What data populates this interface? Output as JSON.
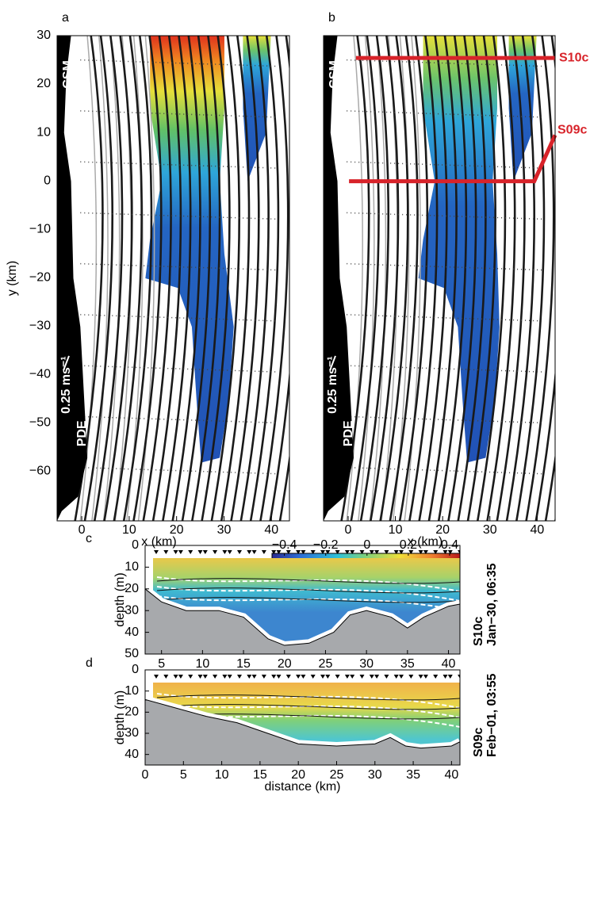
{
  "chart_data": [
    {
      "type": "map",
      "panel": "a",
      "xlabel": "x (km)",
      "ylabel": "y (km)",
      "xlim": [
        -5.2,
        43.8
      ],
      "ylim": [
        -70.3,
        30
      ],
      "xticks": [
        0,
        10,
        20,
        30,
        40
      ],
      "yticks": [
        30,
        20,
        10,
        0,
        {
          "value": -10,
          "label": "−10"
        },
        {
          "value": -20,
          "label": "−20"
        },
        {
          "value": -30,
          "label": "−30"
        },
        {
          "value": -40,
          "label": "−40"
        },
        {
          "value": -50,
          "label": "−50"
        },
        {
          "value": -60,
          "label": "−60"
        }
      ],
      "labels": [
        "CSM",
        "PDE"
      ],
      "scale_label": "0.25 ms⁻¹"
    },
    {
      "type": "map",
      "panel": "b",
      "xlabel": "x (km)",
      "xlim": [
        -5.2,
        43.8
      ],
      "ylim": [
        -70.3,
        30
      ],
      "xticks": [
        0,
        10,
        20,
        30,
        40
      ],
      "labels": [
        "CSM",
        "PDE"
      ],
      "scale_label": "0.25 ms⁻¹",
      "sections": [
        "S10c",
        "S09c"
      ]
    },
    {
      "type": "colorbar",
      "lim": [
        -0.46,
        0.45
      ],
      "ticks": [
        {
          "value": -0.4,
          "label": "−0.4"
        },
        {
          "value": -0.2,
          "label": "−0.2"
        },
        0,
        0.2,
        0.4
      ]
    },
    {
      "type": "section",
      "panel": "c",
      "ylabel": "depth (m)",
      "xlim": [
        3,
        41.4
      ],
      "ylim": [
        0,
        50
      ],
      "xticks": [
        5,
        10,
        15,
        20,
        25,
        30,
        35,
        40
      ],
      "yticks": [
        0,
        10,
        20,
        30,
        40,
        50
      ],
      "section": "S10c",
      "time": "Jan−30, 06:35",
      "bottom": {
        "distance": [
          3,
          5,
          8,
          12,
          15,
          18,
          20,
          23,
          26,
          28,
          30,
          33,
          35,
          37,
          40,
          41.4
        ],
        "depth": [
          20,
          26,
          30,
          30,
          33,
          43,
          46,
          45,
          40,
          32,
          30,
          33,
          38,
          33,
          28,
          27
        ]
      }
    },
    {
      "type": "section",
      "panel": "d",
      "ylabel": "depth (m)",
      "xlabel": "distance (km)",
      "xlim": [
        0,
        41.1
      ],
      "ylim": [
        0,
        45
      ],
      "xticks": [
        0,
        5,
        10,
        15,
        20,
        25,
        30,
        35,
        40
      ],
      "yticks": [
        0,
        10,
        20,
        30,
        40
      ],
      "section": "S09c",
      "time": "Feb−01, 03:55",
      "bottom": {
        "distance": [
          0,
          3,
          8,
          12,
          16,
          20,
          25,
          30,
          32,
          34,
          36,
          40,
          41.1
        ],
        "depth": [
          14,
          17,
          22,
          25,
          30,
          35,
          36,
          35,
          32,
          36,
          37,
          36,
          34
        ]
      }
    }
  ]
}
